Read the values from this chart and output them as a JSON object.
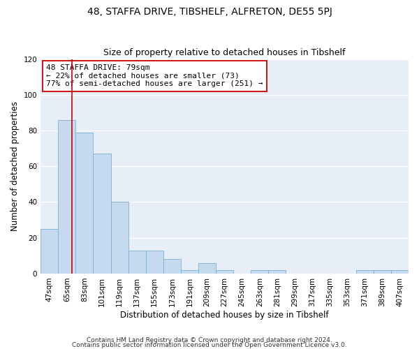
{
  "title": "48, STAFFA DRIVE, TIBSHELF, ALFRETON, DE55 5PJ",
  "subtitle": "Size of property relative to detached houses in Tibshelf",
  "xlabel": "Distribution of detached houses by size in Tibshelf",
  "ylabel": "Number of detached properties",
  "bin_labels": [
    "47sqm",
    "65sqm",
    "83sqm",
    "101sqm",
    "119sqm",
    "137sqm",
    "155sqm",
    "173sqm",
    "191sqm",
    "209sqm",
    "227sqm",
    "245sqm",
    "263sqm",
    "281sqm",
    "299sqm",
    "317sqm",
    "335sqm",
    "353sqm",
    "371sqm",
    "389sqm",
    "407sqm"
  ],
  "bar_values": [
    25,
    86,
    79,
    67,
    40,
    13,
    13,
    8,
    2,
    6,
    2,
    0,
    2,
    2,
    0,
    0,
    0,
    0,
    2,
    2,
    2
  ],
  "bin_edges": [
    47,
    65,
    83,
    101,
    119,
    137,
    155,
    173,
    191,
    209,
    227,
    245,
    263,
    281,
    299,
    317,
    335,
    353,
    371,
    389,
    407
  ],
  "bin_width": 18,
  "property_value": 79,
  "bar_color": "#c5d9ef",
  "bar_edge_color": "#7bafd4",
  "vline_color": "#cc0000",
  "vline_x": 79,
  "annotation_text": "48 STAFFA DRIVE: 79sqm\n← 22% of detached houses are smaller (73)\n77% of semi-detached houses are larger (251) →",
  "annotation_box_color": "#ffffff",
  "annotation_box_edge_color": "#cc0000",
  "ylim": [
    0,
    120
  ],
  "yticks": [
    0,
    20,
    40,
    60,
    80,
    100,
    120
  ],
  "footer1": "Contains HM Land Registry data © Crown copyright and database right 2024.",
  "footer2": "Contains public sector information licensed under the Open Government Licence v3.0.",
  "background_color": "#ffffff",
  "plot_bg_color": "#e8eef8",
  "grid_color": "#ffffff",
  "title_fontsize": 10,
  "subtitle_fontsize": 9,
  "axis_label_fontsize": 8.5,
  "tick_fontsize": 7.5,
  "annotation_fontsize": 8,
  "footer_fontsize": 6.5
}
